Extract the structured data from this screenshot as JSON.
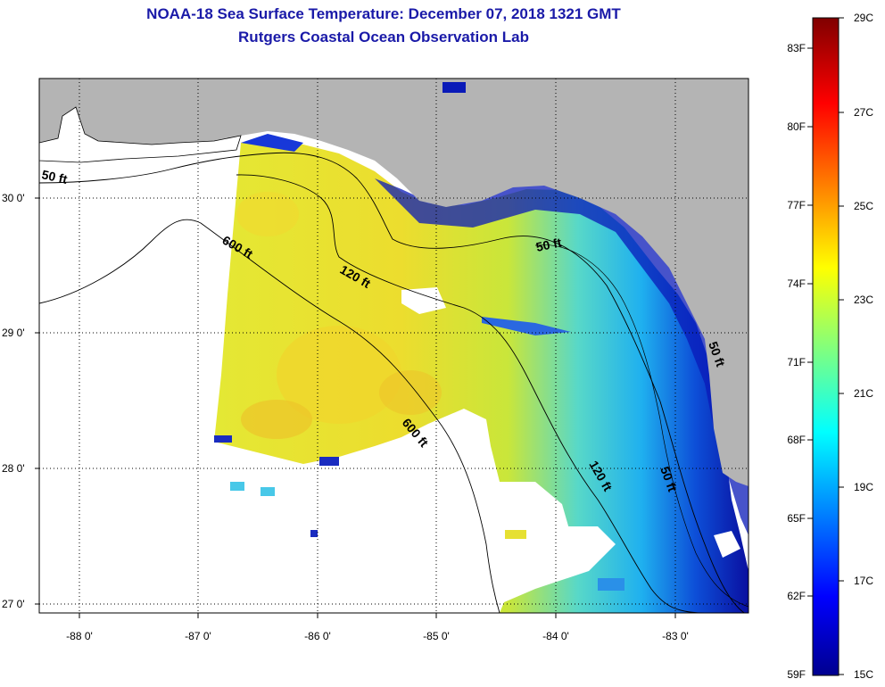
{
  "title": {
    "line1": "NOAA-18 Sea Surface Temperature:  December 07, 2018 1321 GMT",
    "line2": "Rutgers Coastal Ocean Observation Lab"
  },
  "map": {
    "lat_labels": [
      "30 0'",
      "29 0'",
      "28 0'",
      "27 0'"
    ],
    "lon_labels": [
      "-88 0'",
      "-87 0'",
      "-86 0'",
      "-85 0'",
      "-84 0'",
      "-83 0'"
    ],
    "contour_labels": [
      "50 ft",
      "600 ft",
      "120 ft",
      "50 ft",
      "600 ft",
      "120 ft",
      "50 ft",
      "50 ft"
    ],
    "land_color": "#b4b4b4",
    "no_data_color": "#ffffff"
  },
  "colorbar": {
    "fahrenheit_labels": [
      "83F",
      "80F",
      "77F",
      "74F",
      "71F",
      "68F",
      "65F",
      "62F",
      "59F"
    ],
    "celsius_labels": [
      "29C",
      "27C",
      "25C",
      "23C",
      "21C",
      "19C",
      "17C",
      "15C"
    ],
    "colormap": [
      "#00008f",
      "#0000ff",
      "#00ffff",
      "#ffff00",
      "#ff0000",
      "#800000"
    ]
  }
}
